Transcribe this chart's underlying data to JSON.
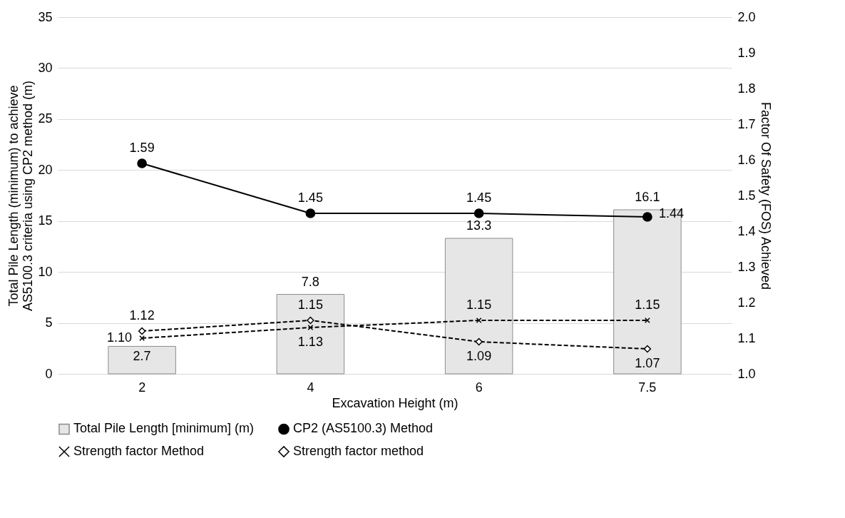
{
  "chart_data": {
    "type": "bar",
    "xlabel": "Excavation Height (m)",
    "ylabel": "Total Pile Length (minimum) to achieve AS5100.3 criteria using CP2 method (m)",
    "y2label": "Factor Of Safety (FOS) Achieved",
    "categories": [
      "2",
      "4",
      "6",
      "7.5"
    ],
    "series": [
      {
        "name": "Total Pile Length [minimum] (m)",
        "color": "#e7e6e6",
        "values": [
          2.7,
          7.8,
          13.3,
          16.1
        ],
        "value_labels": [
          "2.7",
          "7.8",
          "13.3",
          "16.1"
        ]
      },
      {
        "name": "CP2 (AS5100.3) Method",
        "type": "line",
        "axis": "y2",
        "color": "#000000",
        "marker": "circle",
        "line_style": "solid",
        "values": [
          1.59,
          1.45,
          1.45,
          1.44
        ],
        "value_labels": [
          "1.59",
          "1.45",
          "1.45",
          "1.44"
        ]
      },
      {
        "name": "Strength factor Method",
        "type": "line",
        "axis": "y2",
        "color": "#000000",
        "marker": "cross",
        "line_style": "dashed",
        "values": [
          1.1,
          1.13,
          1.15,
          1.15
        ],
        "value_labels": [
          "1.10",
          "1.13",
          "1.15",
          "1.15"
        ]
      },
      {
        "name": "Strength factor method",
        "type": "line",
        "axis": "y2",
        "color": "#000000",
        "marker": "diamond",
        "line_style": "dashed",
        "values": [
          1.12,
          1.15,
          1.09,
          1.07
        ],
        "value_labels": [
          "1.12",
          "1.15",
          "1.09",
          "1.07"
        ]
      }
    ],
    "ylim": [
      0,
      35
    ],
    "yticks": [
      0,
      5,
      10,
      15,
      20,
      25,
      30,
      35
    ],
    "y2lim": [
      1.0,
      2.0
    ],
    "y2ticks": [
      {
        "value": 1.0,
        "label": "1.0"
      },
      1.1,
      1.2,
      1.3,
      1.4,
      1.5,
      1.6,
      1.7,
      1.8,
      1.9,
      {
        "value": 2.0,
        "label": "2.0"
      }
    ],
    "grid": "y",
    "legend": "bottom"
  }
}
